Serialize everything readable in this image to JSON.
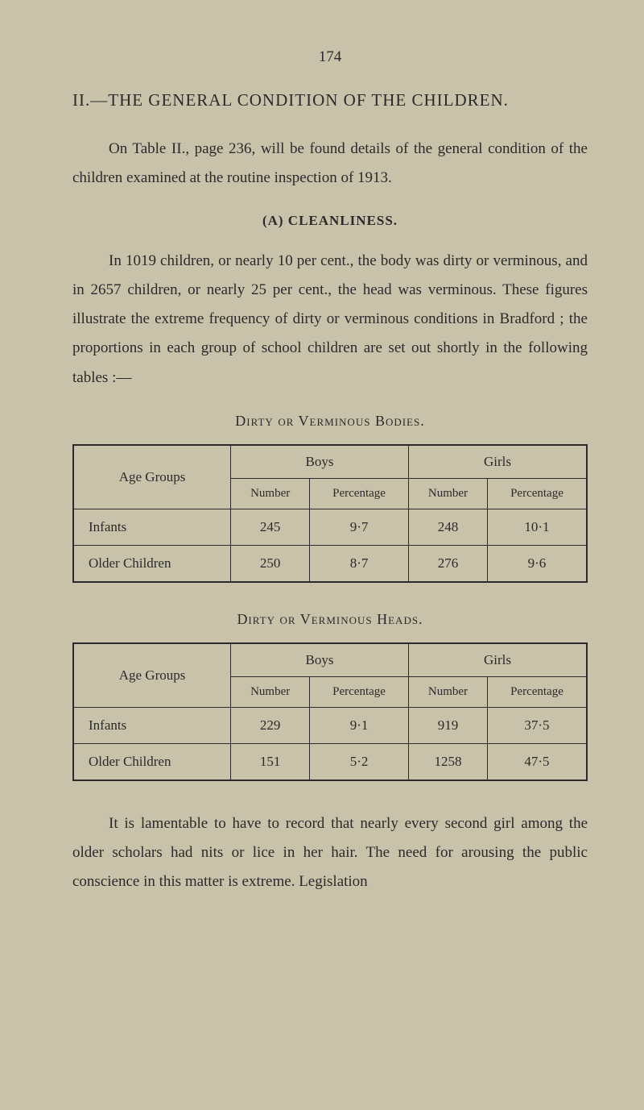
{
  "page_number": "174",
  "section_heading": "II.—THE GENERAL CONDITION OF THE CHILDREN.",
  "intro_paragraph": "On Table II., page 236, will be found details of the general condition of the children examined at the routine inspection of 1913.",
  "subsection_a_heading": "(A) CLEANLINESS.",
  "cleanliness_paragraph": "In 1019 children, or nearly 10 per cent., the body was dirty or verminous, and in 2657 children, or nearly 25 per cent., the head was verminous. These figures illustrate the extreme frequency of dirty or verminous conditions in Bradford ; the proportions in each group of school children are set out shortly in the following tables :—",
  "table1": {
    "title": "Dirty or Verminous Bodies.",
    "row_header_label": "Age Groups",
    "group_headers": [
      "Boys",
      "Girls"
    ],
    "sub_headers": [
      "Number",
      "Percentage",
      "Number",
      "Percentage"
    ],
    "rows": [
      {
        "label": "Infants",
        "values": [
          "245",
          "9·7",
          "248",
          "10·1"
        ]
      },
      {
        "label": "Older Children",
        "values": [
          "250",
          "8·7",
          "276",
          "9·6"
        ]
      }
    ]
  },
  "table2": {
    "title": "Dirty or Verminous Heads.",
    "row_header_label": "Age Groups",
    "group_headers": [
      "Boys",
      "Girls"
    ],
    "sub_headers": [
      "Number",
      "Percentage",
      "Number",
      "Percentage"
    ],
    "rows": [
      {
        "label": "Infants",
        "values": [
          "229",
          "9·1",
          "919",
          "37·5"
        ]
      },
      {
        "label": "Older Children",
        "values": [
          "151",
          "5·2",
          "1258",
          "47·5"
        ]
      }
    ]
  },
  "closing_paragraph": "It is lamentable to have to record that nearly every second girl among the older scholars had nits or lice in her hair. The need for arousing the public conscience in this matter is extreme. Legislation",
  "colors": {
    "background": "#c9c2aa",
    "text": "#2a2a2a",
    "border": "#2a2a2a"
  }
}
